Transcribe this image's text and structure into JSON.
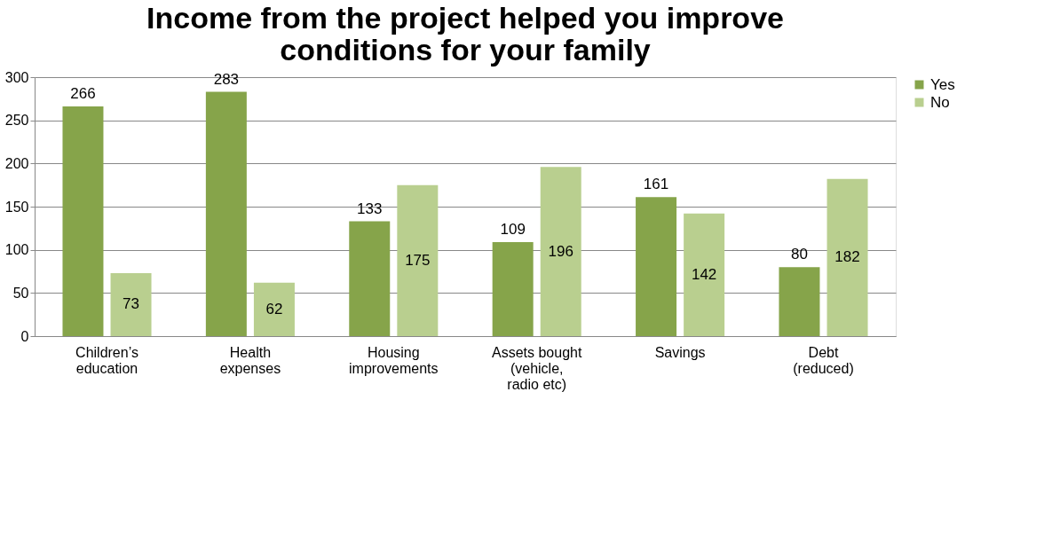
{
  "chart_data": {
    "type": "bar",
    "title": "Income from the project helped you improve conditions for your family",
    "categories": [
      "Children’s education",
      "Health expenses",
      "Housing improvements",
      "Assets bought (vehicle, radio etc)",
      "Savings",
      "Debt (reduced)"
    ],
    "series": [
      {
        "name": "Yes",
        "color": "#86a44a",
        "values": [
          266,
          283,
          133,
          109,
          161,
          80
        ]
      },
      {
        "name": "No",
        "color": "#b9cf8f",
        "values": [
          73,
          62,
          175,
          196,
          142,
          182
        ]
      }
    ],
    "ylim": [
      0,
      300
    ],
    "yticks": [
      0,
      50,
      100,
      150,
      200,
      250,
      300
    ],
    "grid": "y",
    "legend": "right",
    "data_labels": true
  }
}
